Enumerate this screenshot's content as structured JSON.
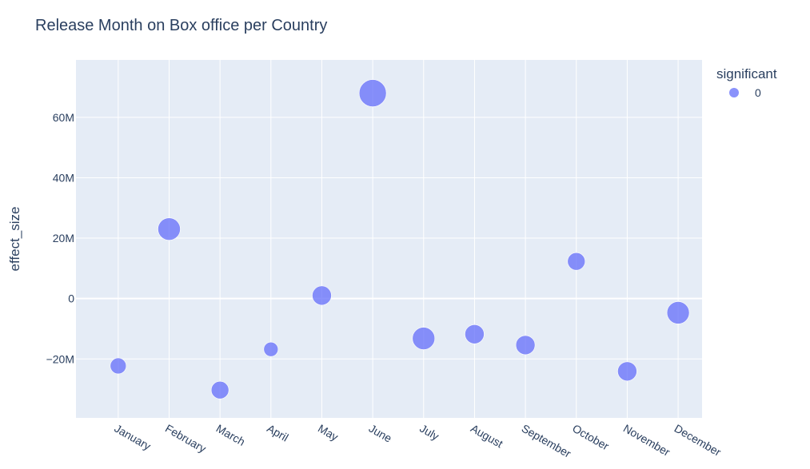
{
  "chart_data": {
    "type": "scatter",
    "title": "Release Month on Box office per Country",
    "xlabel": "",
    "ylabel": "effect_size",
    "categories": [
      "January",
      "February",
      "March",
      "April",
      "May",
      "June",
      "July",
      "August",
      "September",
      "October",
      "November",
      "December"
    ],
    "series": [
      {
        "name": "0",
        "values": [
          -22300000,
          23000000,
          -30300000,
          -16800000,
          1000000,
          68000000,
          -13200000,
          -11800000,
          -15400000,
          12300000,
          -24100000,
          -4700000
        ],
        "sizes": [
          10,
          14,
          11,
          9,
          12,
          17,
          14,
          12,
          12,
          11,
          12,
          14
        ]
      }
    ],
    "ylim": [
      -39500000,
      79000000
    ],
    "yticks": [
      -20000000,
      0,
      20000000,
      40000000,
      60000000
    ],
    "ytick_labels": [
      "−20M",
      "0",
      "20M",
      "40M",
      "60M"
    ],
    "legend": {
      "title": "significant",
      "placement": "top-right"
    },
    "colors": {
      "marker": "#636efa",
      "plot_bg": "#e5ecf6",
      "grid": "#ffffff",
      "text": "#2a3f5f"
    },
    "grid": true
  }
}
